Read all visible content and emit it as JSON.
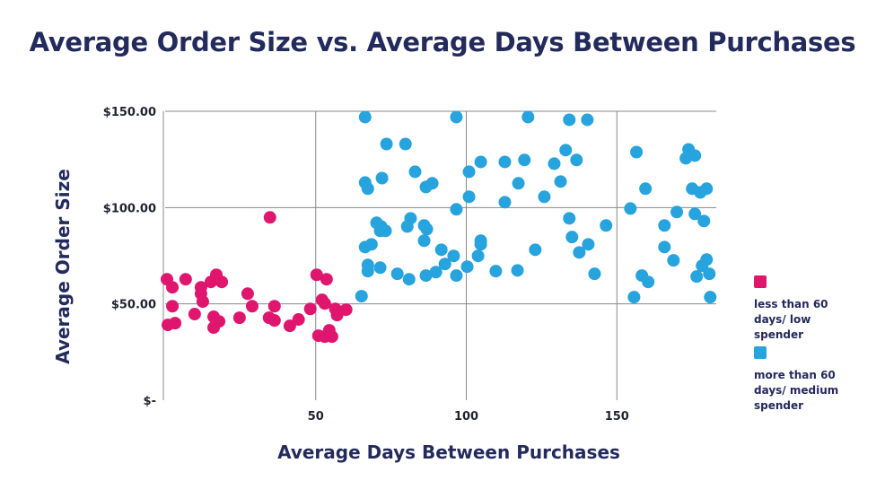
{
  "chart_data": {
    "type": "scatter",
    "title": "Average Order Size vs. Average Days Between Purchases",
    "xlabel": "Average Days Between Purchases",
    "ylabel": "Average Order Size",
    "xlim": [
      0,
      183
    ],
    "ylim": [
      0,
      150
    ],
    "xticks": [
      50,
      100,
      150
    ],
    "xtick_labels": [
      "50",
      "100",
      "150"
    ],
    "yticks": [
      0,
      50,
      100,
      150
    ],
    "ytick_labels": [
      "$-",
      "$50.00",
      "$100.00",
      "$150.00"
    ],
    "grid": true,
    "legend_placement": "right",
    "series": [
      {
        "name": "less than 60 days/ low spender",
        "color": "#e0166e",
        "points": [
          [
            0.6,
            62.8
          ],
          [
            2.4,
            58.6
          ],
          [
            6.8,
            62.8
          ],
          [
            2.4,
            48.8
          ],
          [
            0.9,
            39.1
          ],
          [
            3.3,
            40.0
          ],
          [
            9.8,
            44.7
          ],
          [
            11.9,
            58.6
          ],
          [
            11.9,
            55.3
          ],
          [
            12.5,
            51.2
          ],
          [
            15.2,
            61.4
          ],
          [
            17.0,
            65.1
          ],
          [
            18.8,
            61.4
          ],
          [
            16.1,
            43.3
          ],
          [
            17.9,
            40.9
          ],
          [
            16.1,
            37.7
          ],
          [
            24.7,
            42.8
          ],
          [
            27.4,
            55.3
          ],
          [
            28.9,
            48.8
          ],
          [
            34.8,
            94.9
          ],
          [
            36.3,
            48.8
          ],
          [
            34.5,
            42.8
          ],
          [
            36.3,
            41.4
          ],
          [
            41.4,
            38.6
          ],
          [
            44.3,
            41.9
          ],
          [
            48.2,
            47.4
          ],
          [
            50.3,
            65.1
          ],
          [
            53.6,
            62.8
          ],
          [
            52.1,
            52.1
          ],
          [
            53.0,
            50.2
          ],
          [
            56.5,
            47.4
          ],
          [
            57.1,
            44.2
          ],
          [
            60.1,
            47.0
          ],
          [
            50.9,
            33.5
          ],
          [
            53.0,
            33.0
          ],
          [
            54.5,
            36.3
          ],
          [
            55.4,
            33.0
          ]
        ]
      },
      {
        "name": "more than 60 days/ medium spender",
        "color": "#27a3dd",
        "points": [
          [
            66.4,
            147
          ],
          [
            96.7,
            147
          ],
          [
            120.5,
            147
          ],
          [
            73.5,
            133
          ],
          [
            79.8,
            133
          ],
          [
            104.8,
            123.7
          ],
          [
            112.8,
            123.7
          ],
          [
            119.3,
            124.7
          ],
          [
            66.4,
            113
          ],
          [
            67.3,
            109.8
          ],
          [
            72.0,
            115.3
          ],
          [
            83.0,
            118.6
          ],
          [
            86.6,
            110.7
          ],
          [
            88.7,
            112.6
          ],
          [
            100.9,
            118.6
          ],
          [
            117.3,
            112.6
          ],
          [
            100.9,
            105.6
          ],
          [
            112.8,
            102.8
          ],
          [
            96.7,
            99.1
          ],
          [
            70.2,
            92.1
          ],
          [
            71.7,
            90.2
          ],
          [
            71.4,
            87.9
          ],
          [
            73.2,
            87.9
          ],
          [
            81.5,
            94.4
          ],
          [
            80.4,
            90.2
          ],
          [
            86.0,
            90.7
          ],
          [
            86.9,
            88.8
          ],
          [
            86.0,
            82.8
          ],
          [
            66.4,
            79.5
          ],
          [
            68.5,
            80.9
          ],
          [
            91.7,
            78.1
          ],
          [
            95.8,
            74.9
          ],
          [
            104.8,
            82.8
          ],
          [
            104.8,
            80.9
          ],
          [
            103.9,
            74.9
          ],
          [
            67.3,
            70.2
          ],
          [
            67.3,
            67.0
          ],
          [
            71.4,
            68.8
          ],
          [
            77.1,
            65.6
          ],
          [
            81.0,
            62.8
          ],
          [
            86.6,
            64.7
          ],
          [
            89.9,
            66.5
          ],
          [
            92.9,
            70.7
          ],
          [
            96.7,
            64.7
          ],
          [
            100.3,
            69.3
          ],
          [
            109.8,
            67.0
          ],
          [
            117.0,
            67.4
          ],
          [
            122.9,
            78.1
          ],
          [
            65.2,
            54.0
          ],
          [
            134.2,
            145.6
          ],
          [
            140.2,
            145.6
          ],
          [
            133.0,
            129.8
          ],
          [
            129.2,
            122.8
          ],
          [
            136.6,
            124.7
          ],
          [
            131.3,
            113.5
          ],
          [
            125.9,
            105.6
          ],
          [
            134.2,
            94.4
          ],
          [
            146.4,
            90.7
          ],
          [
            135.1,
            84.7
          ],
          [
            140.5,
            80.9
          ],
          [
            137.5,
            76.7
          ],
          [
            142.6,
            65.6
          ],
          [
            156.5,
            128.8
          ],
          [
            173.8,
            130.2
          ],
          [
            172.9,
            125.6
          ],
          [
            175.9,
            127
          ],
          [
            159.5,
            109.8
          ],
          [
            175,
            109.8
          ],
          [
            177.7,
            107.9
          ],
          [
            179.8,
            109.8
          ],
          [
            154.5,
            99.5
          ],
          [
            169.9,
            97.7
          ],
          [
            175.9,
            96.7
          ],
          [
            178.9,
            93
          ],
          [
            165.8,
            90.7
          ],
          [
            165.8,
            79.5
          ],
          [
            168.8,
            72.6
          ],
          [
            179.8,
            73
          ],
          [
            178.3,
            69.8
          ],
          [
            176.5,
            64.2
          ],
          [
            180.7,
            65.6
          ],
          [
            158.3,
            64.7
          ],
          [
            160.4,
            61.4
          ],
          [
            155.7,
            53.5
          ],
          [
            181,
            53.5
          ]
        ]
      }
    ]
  }
}
